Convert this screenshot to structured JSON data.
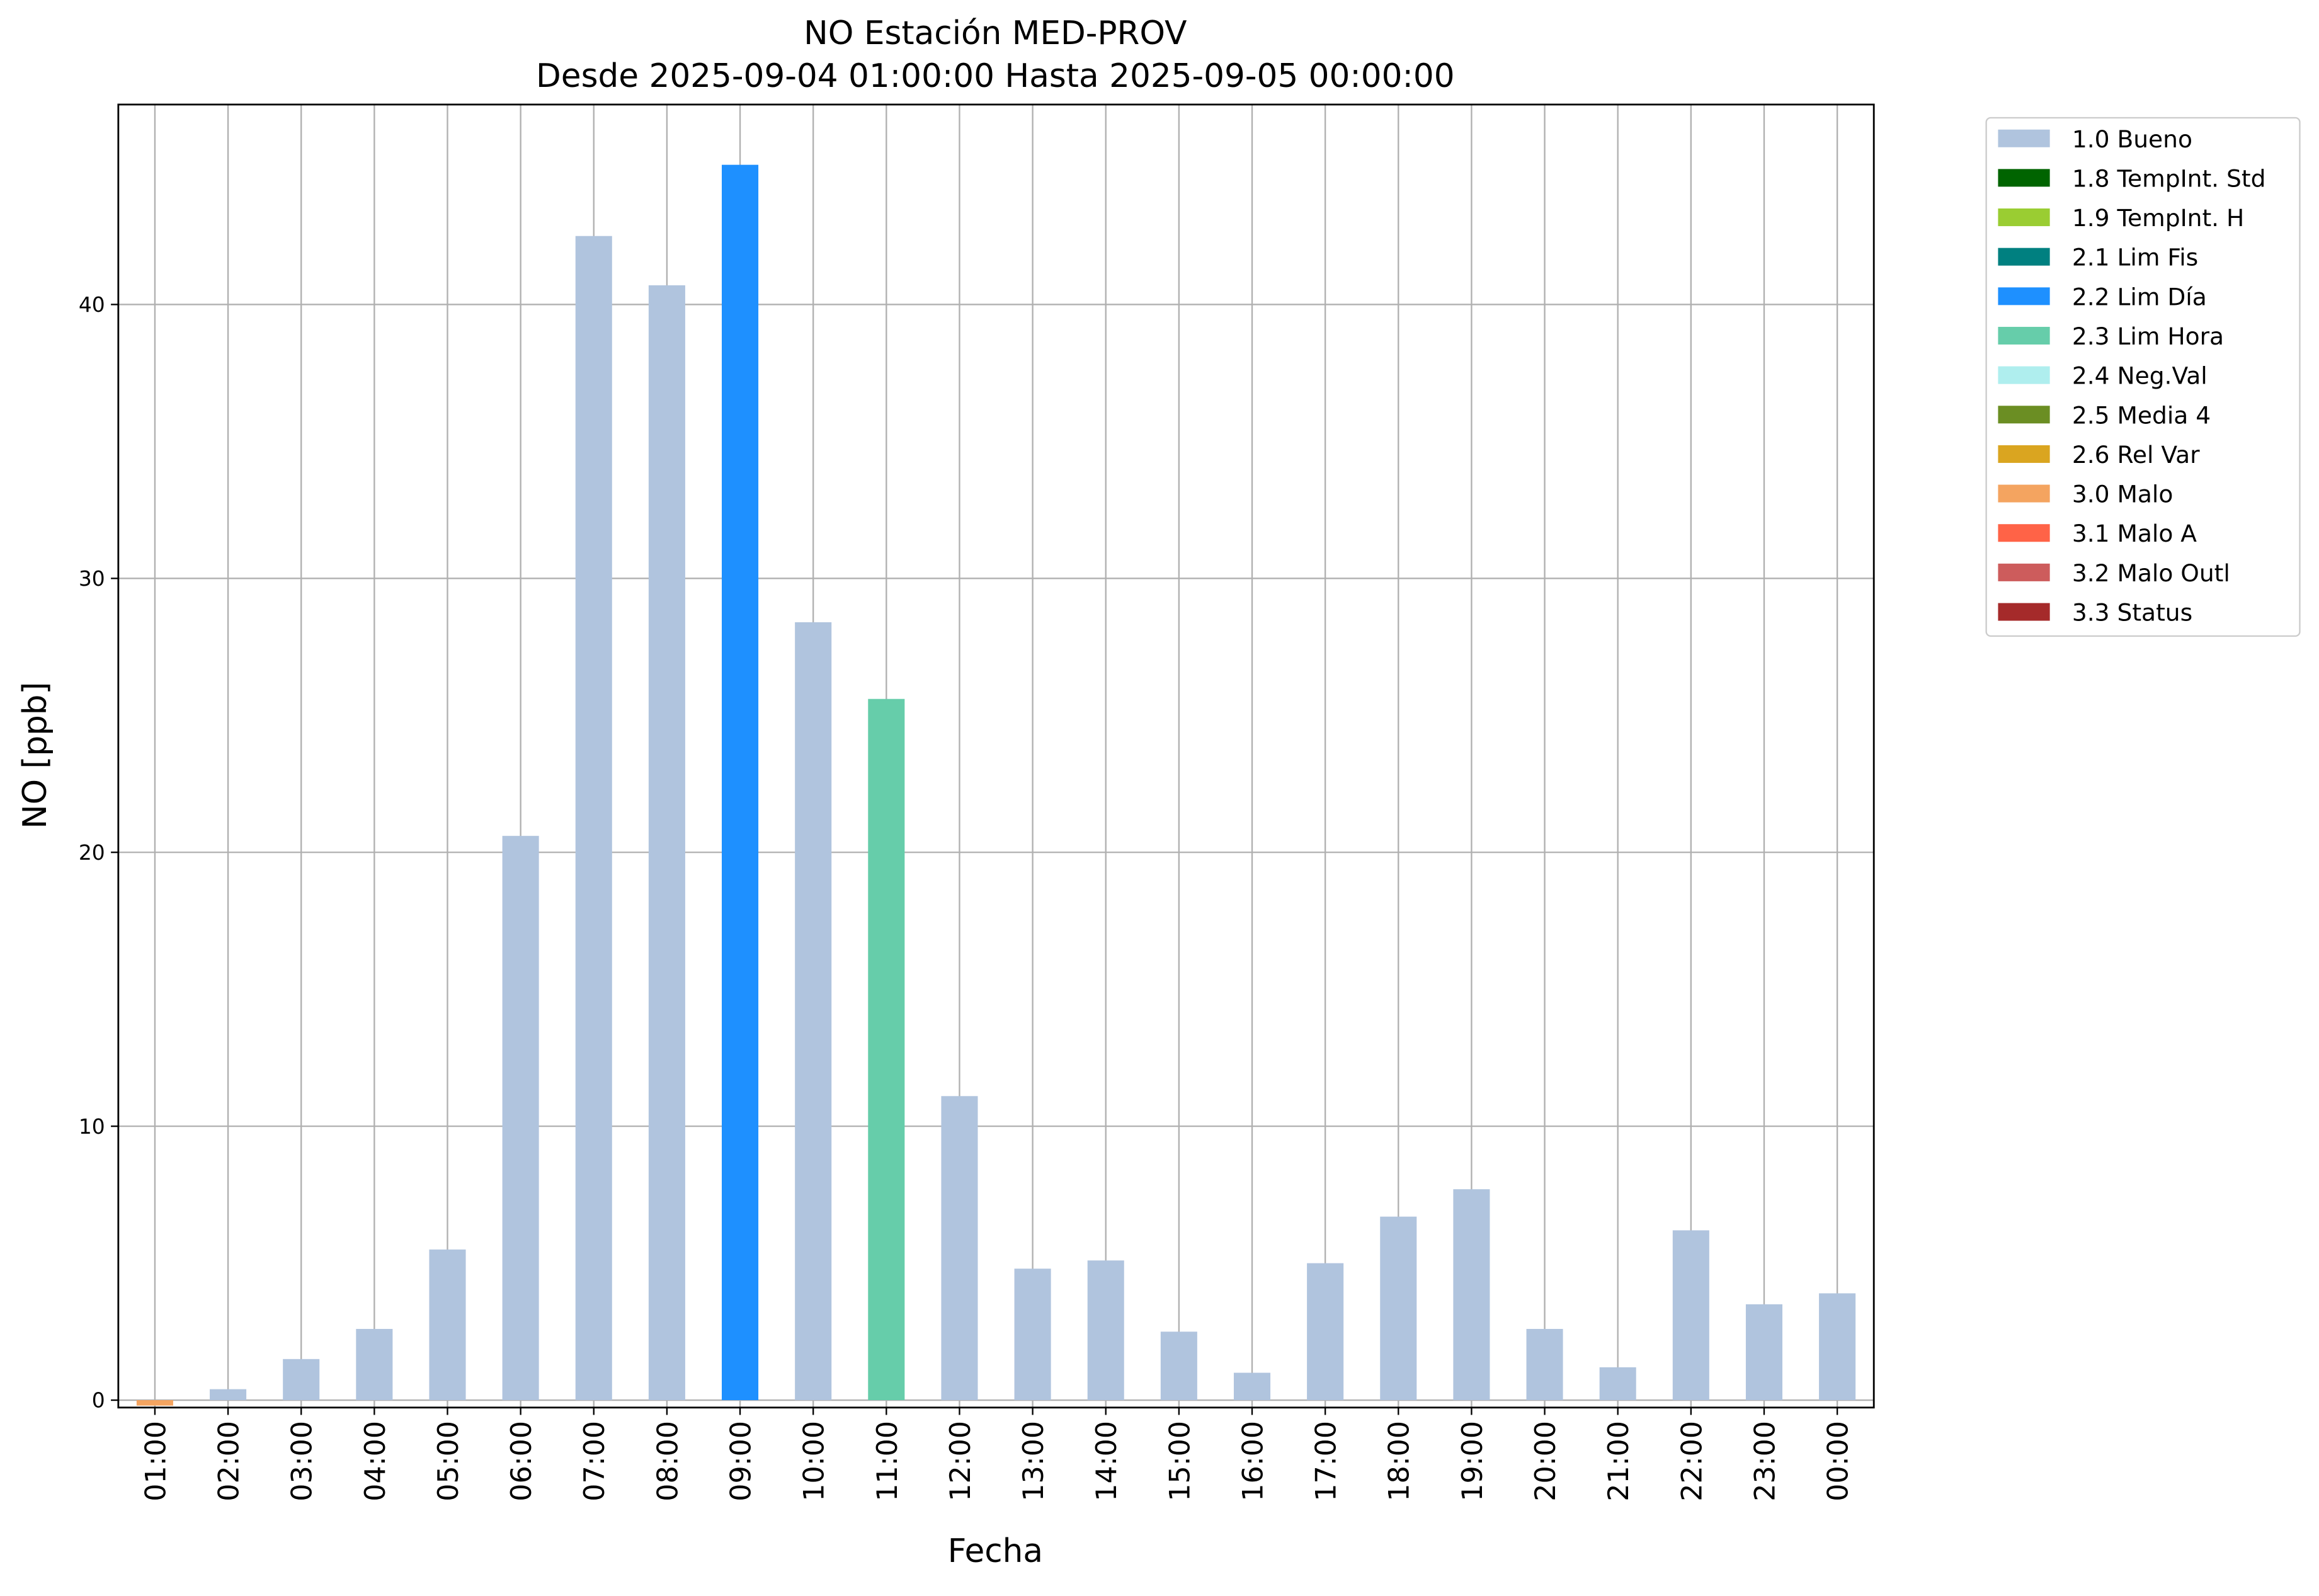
{
  "chart_data": {
    "type": "bar",
    "stacked": true,
    "title": "NO Estación MED-PROV",
    "subtitle": "Desde 2025-09-04 01:00:00 Hasta 2025-09-05 00:00:00",
    "x_label": "Fecha",
    "y_label": "NO [ppb]",
    "categories": [
      "01:00",
      "02:00",
      "03:00",
      "04:00",
      "05:00",
      "06:00",
      "07:00",
      "08:00",
      "09:00",
      "10:00",
      "11:00",
      "12:00",
      "13:00",
      "14:00",
      "15:00",
      "16:00",
      "17:00",
      "18:00",
      "19:00",
      "20:00",
      "21:00",
      "22:00",
      "23:00",
      "00:00"
    ],
    "series": [
      {
        "name": "1.0 Bueno",
        "color": "#b0c4de",
        "values": [
          null,
          0.4,
          1.5,
          2.6,
          5.5,
          20.6,
          42.5,
          40.7,
          null,
          28.4,
          null,
          11.1,
          4.8,
          5.1,
          2.5,
          1.0,
          5.0,
          6.7,
          7.7,
          2.6,
          1.2,
          6.2,
          3.5,
          3.9
        ]
      },
      {
        "name": "1.8 TempInt. Std",
        "color": "#006400",
        "values": [
          null,
          null,
          null,
          null,
          null,
          null,
          null,
          null,
          null,
          null,
          null,
          null,
          null,
          null,
          null,
          null,
          null,
          null,
          null,
          null,
          null,
          null,
          null,
          null
        ]
      },
      {
        "name": "1.9 TempInt. H",
        "color": "#9acd32",
        "values": [
          null,
          null,
          null,
          null,
          null,
          null,
          null,
          null,
          null,
          null,
          null,
          null,
          null,
          null,
          null,
          null,
          null,
          null,
          null,
          null,
          null,
          null,
          null,
          null
        ]
      },
      {
        "name": "2.1 Lim Fis",
        "color": "#008080",
        "values": [
          null,
          null,
          null,
          null,
          null,
          null,
          null,
          null,
          null,
          null,
          null,
          null,
          null,
          null,
          null,
          null,
          null,
          null,
          null,
          null,
          null,
          null,
          null,
          null
        ]
      },
      {
        "name": "2.2 Lim Día",
        "color": "#1e90ff",
        "values": [
          null,
          null,
          null,
          null,
          null,
          null,
          null,
          null,
          45.1,
          null,
          null,
          null,
          null,
          null,
          null,
          null,
          null,
          null,
          null,
          null,
          null,
          null,
          null,
          null
        ]
      },
      {
        "name": "2.3 Lim Hora",
        "color": "#66cdaa",
        "values": [
          null,
          null,
          null,
          null,
          null,
          null,
          null,
          null,
          null,
          null,
          25.6,
          null,
          null,
          null,
          null,
          null,
          null,
          null,
          null,
          null,
          null,
          null,
          null,
          null
        ]
      },
      {
        "name": "2.4 Neg.Val",
        "color": "#afeeee",
        "values": [
          null,
          null,
          null,
          null,
          null,
          null,
          null,
          null,
          null,
          null,
          null,
          null,
          null,
          null,
          null,
          null,
          null,
          null,
          null,
          null,
          null,
          null,
          null,
          null
        ]
      },
      {
        "name": "2.5 Media 4",
        "color": "#6b8e23",
        "values": [
          null,
          null,
          null,
          null,
          null,
          null,
          null,
          null,
          null,
          null,
          null,
          null,
          null,
          null,
          null,
          null,
          null,
          null,
          null,
          null,
          null,
          null,
          null,
          null
        ]
      },
      {
        "name": "2.6 Rel Var",
        "color": "#daa520",
        "values": [
          null,
          null,
          null,
          null,
          null,
          null,
          null,
          null,
          null,
          null,
          null,
          null,
          null,
          null,
          null,
          null,
          null,
          null,
          null,
          null,
          null,
          null,
          null,
          null
        ]
      },
      {
        "name": "3.0 Malo",
        "color": "#f4a460",
        "values": [
          -0.2,
          null,
          null,
          null,
          null,
          null,
          null,
          null,
          null,
          null,
          null,
          null,
          null,
          null,
          null,
          null,
          null,
          null,
          null,
          null,
          null,
          null,
          null,
          null
        ]
      },
      {
        "name": "3.1 Malo A",
        "color": "#ff6347",
        "values": [
          null,
          null,
          null,
          null,
          null,
          null,
          null,
          null,
          null,
          null,
          null,
          null,
          null,
          null,
          null,
          null,
          null,
          null,
          null,
          null,
          null,
          null,
          null,
          null
        ]
      },
      {
        "name": "3.2 Malo Outl",
        "color": "#cd5c5c",
        "values": [
          null,
          null,
          null,
          null,
          null,
          null,
          null,
          null,
          null,
          null,
          null,
          null,
          null,
          null,
          null,
          null,
          null,
          null,
          null,
          null,
          null,
          null,
          null,
          null
        ]
      },
      {
        "name": "3.3 Status",
        "color": "#a52a2a",
        "values": [
          null,
          null,
          null,
          null,
          null,
          null,
          null,
          null,
          null,
          null,
          null,
          null,
          null,
          null,
          null,
          null,
          null,
          null,
          null,
          null,
          null,
          null,
          null,
          null
        ]
      }
    ],
    "ylim": [
      -0.27,
      47.3
    ],
    "yticks": [
      0,
      10,
      20,
      30,
      40
    ],
    "grid": true,
    "legend": "outside-right"
  }
}
